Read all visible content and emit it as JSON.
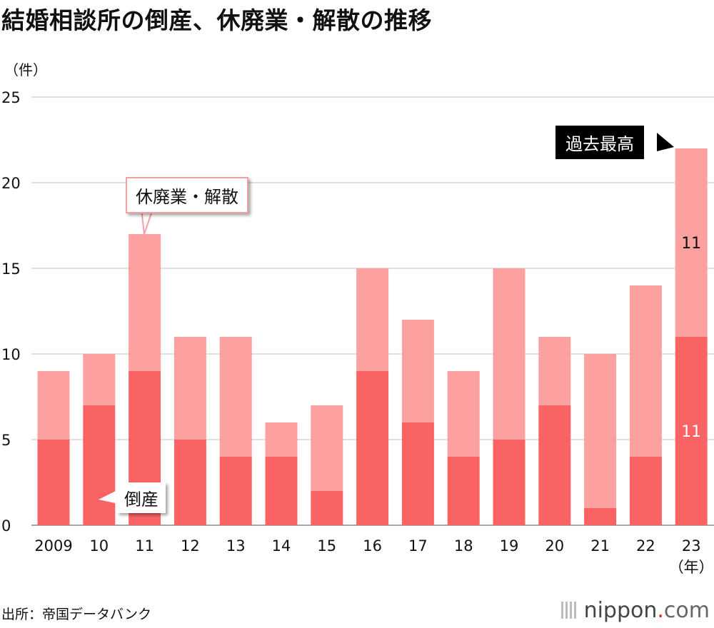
{
  "title": "結婚相談所の倒産、休廃業・解散の推移",
  "unit_label": "（件）",
  "x_unit_label": "（年）",
  "source": "出所：帝国データバンク",
  "logo": {
    "name": "nippon",
    "dot": ".",
    "suffix": "com",
    "icon": "bars-icon"
  },
  "callouts": {
    "closures": "休廃業・解散",
    "bankruptcy": "倒産",
    "record_high": "過去最高"
  },
  "colors": {
    "bankruptcy": "#f96363",
    "closures": "#fca0a0",
    "grid": "#cccccc",
    "logo_dot": "#e3231c"
  },
  "chart_data": {
    "type": "bar",
    "stacked": true,
    "title": "結婚相談所の倒産、休廃業・解散の推移",
    "ylabel": "（件）",
    "xlabel": "（年）",
    "ylim": [
      0,
      25
    ],
    "yticks": [
      0,
      5,
      10,
      15,
      20,
      25
    ],
    "grid": true,
    "categories": [
      "2009",
      "10",
      "11",
      "12",
      "13",
      "14",
      "15",
      "16",
      "17",
      "18",
      "19",
      "20",
      "21",
      "22",
      "23"
    ],
    "series": [
      {
        "name": "倒産",
        "values": [
          5,
          7,
          9,
          5,
          4,
          4,
          2,
          9,
          6,
          4,
          5,
          7,
          1,
          4,
          11
        ]
      },
      {
        "name": "休廃業・解散",
        "values": [
          4,
          3,
          8,
          6,
          7,
          2,
          5,
          6,
          6,
          5,
          10,
          4,
          9,
          10,
          11
        ]
      }
    ],
    "data_labels": [
      {
        "category": "23",
        "series": "倒産",
        "text": "11"
      },
      {
        "category": "23",
        "series": "休廃業・解散",
        "text": "11"
      }
    ]
  }
}
